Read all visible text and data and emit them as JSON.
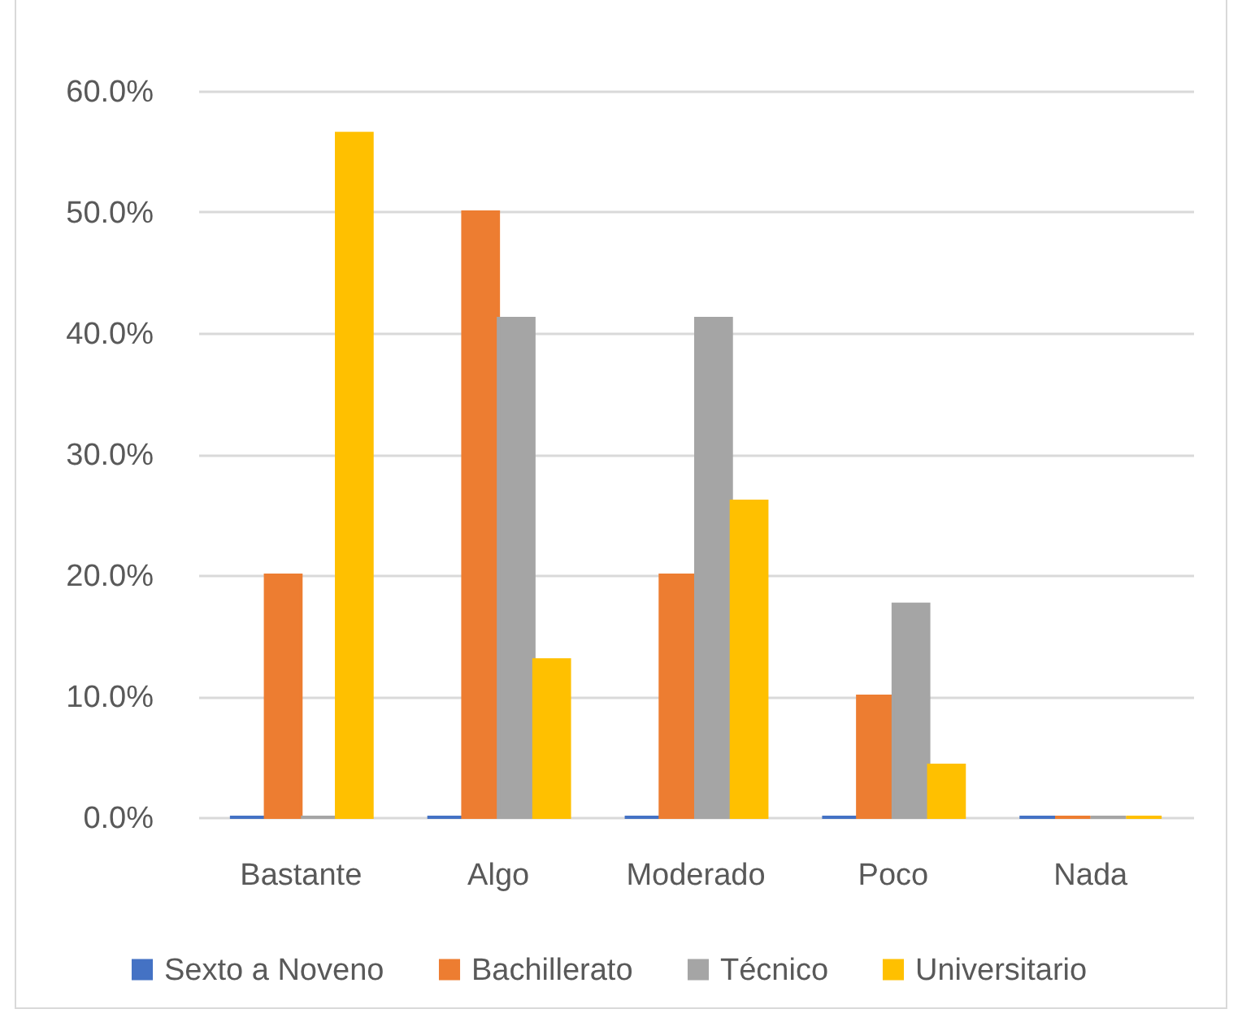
{
  "chart_data": {
    "type": "bar",
    "categories": [
      "Bastante",
      "Algo",
      "Moderado",
      "Poco",
      "Nada"
    ],
    "series": [
      {
        "name": "Sexto a Noveno",
        "color": "#4472c4",
        "values": [
          0,
          0,
          0,
          0,
          0
        ]
      },
      {
        "name": "Bachillerato",
        "color": "#ed7d31",
        "values": [
          20,
          50,
          20,
          10,
          0
        ]
      },
      {
        "name": "Técnico",
        "color": "#a5a5a5",
        "values": [
          0,
          41.2,
          41.2,
          17.6,
          0
        ]
      },
      {
        "name": "Universitario",
        "color": "#ffc000",
        "values": [
          56.5,
          13.0,
          26.1,
          4.3,
          0
        ]
      }
    ],
    "ylim": [
      0,
      60
    ],
    "yticks": [
      {
        "value": 0,
        "label": "0.0%"
      },
      {
        "value": 10,
        "label": "10.0%"
      },
      {
        "value": 20,
        "label": "20.0%"
      },
      {
        "value": 30,
        "label": "30.0%"
      },
      {
        "value": 40,
        "label": "40.0%"
      },
      {
        "value": 50,
        "label": "50.0%"
      },
      {
        "value": 60,
        "label": "60.0%"
      }
    ],
    "grid": "y",
    "legend": "bottom"
  }
}
